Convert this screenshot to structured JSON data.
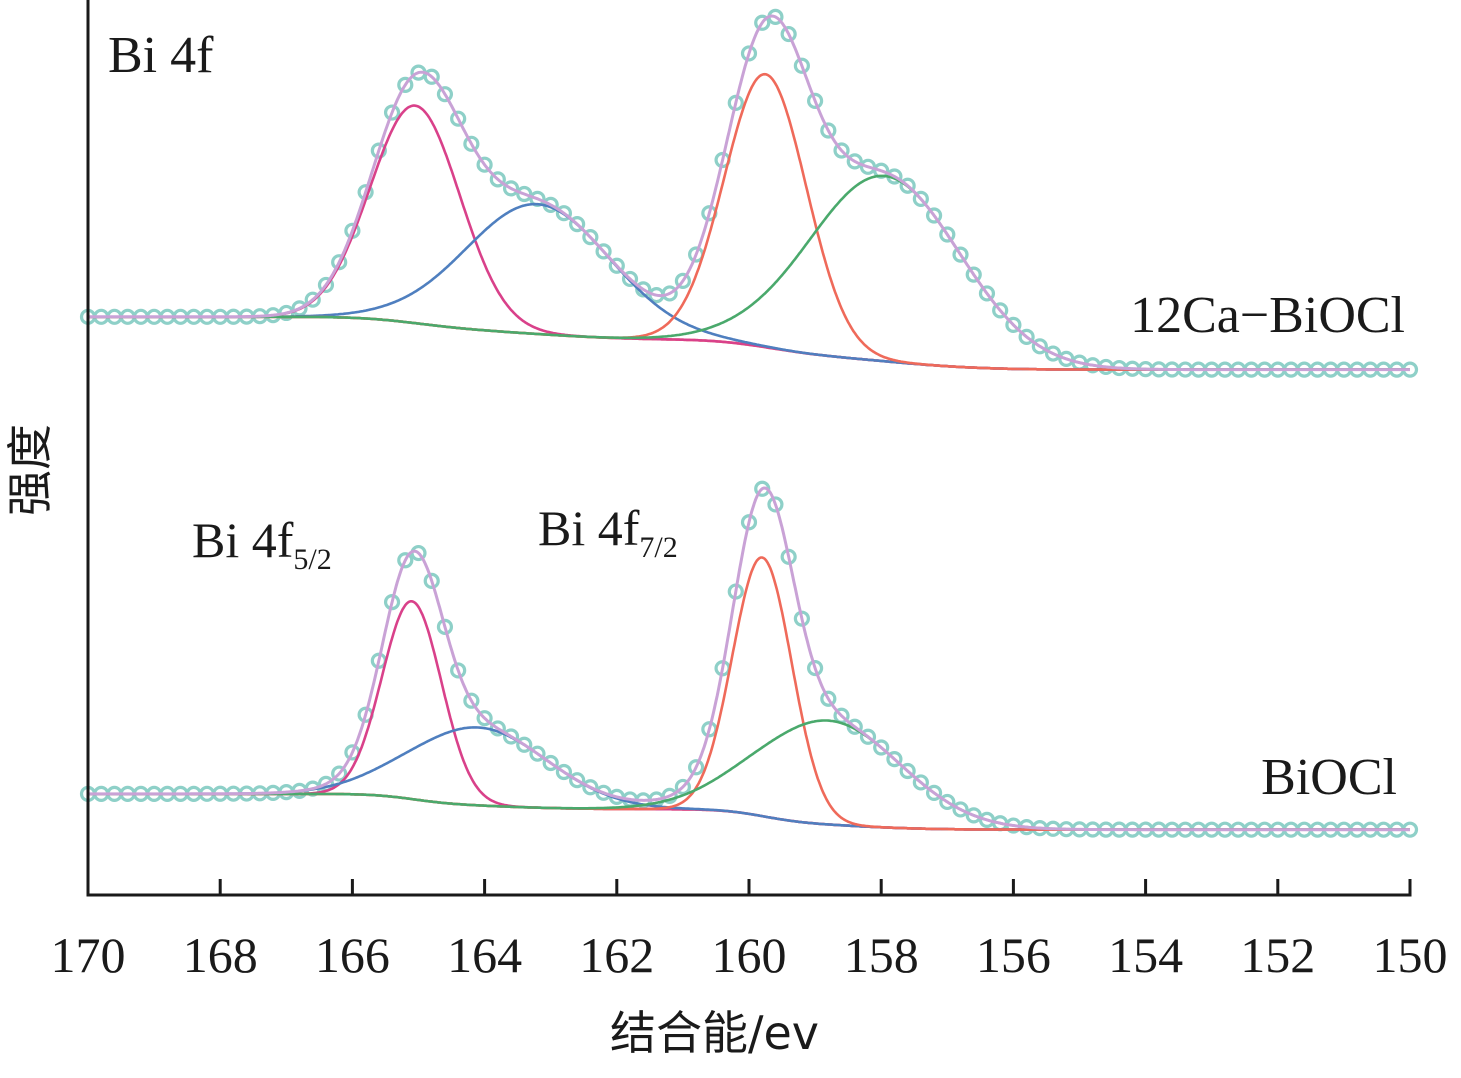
{
  "chart_data": {
    "type": "line",
    "title": "Bi 4f",
    "xlabel": "结合能/ev",
    "ylabel": "强度",
    "xlim": [
      170,
      150
    ],
    "ylim": [
      0,
      100
    ],
    "x_ticks": [
      170,
      168,
      166,
      164,
      162,
      160,
      158,
      156,
      154,
      152,
      150
    ],
    "grid": false,
    "colors": {
      "data_points": "#8ed0c8",
      "envelope": "#c9a2d6",
      "baseline": "#ef6a5a",
      "Bi4f5/2_main": "#d9418a",
      "Bi4f5/2_shoulder": "#4f7fbf",
      "Bi4f7/2_main": "#ef6a5a",
      "Bi4f7/2_shoulder": "#4aa96c"
    },
    "series": [
      {
        "name": "12Ca-BiOCl",
        "label": "12Ca−BiOCl",
        "baseline": {
          "high_side": 64.6,
          "low_side": 58.7
        },
        "components": [
          {
            "name": "Bi4f5/2_main",
            "center": 165.05,
            "height": 24.3,
            "sigma": 0.68
          },
          {
            "name": "Bi4f5/2_shoulder",
            "center": 163.2,
            "height": 14.5,
            "sigma": 1.1
          },
          {
            "name": "Bi4f7/2_main",
            "center": 159.75,
            "height": 30.5,
            "sigma": 0.62
          },
          {
            "name": "Bi4f7/2_shoulder",
            "center": 157.95,
            "height": 20.7,
            "sigma": 1.15
          }
        ]
      },
      {
        "name": "BiOCl",
        "label": "BiOCl",
        "baseline": {
          "high_side": 11.3,
          "low_side": 7.3
        },
        "components": [
          {
            "name": "Bi4f5/2_main",
            "center": 165.1,
            "height": 22.1,
            "sigma": 0.45
          },
          {
            "name": "Bi4f5/2_shoulder",
            "center": 164.1,
            "height": 8.7,
            "sigma": 1.05
          },
          {
            "name": "Bi4f7/2_main",
            "center": 159.8,
            "height": 28.9,
            "sigma": 0.45
          },
          {
            "name": "Bi4f7/2_shoulder",
            "center": 158.8,
            "height": 11.6,
            "sigma": 1.1
          }
        ]
      }
    ],
    "annotations": [
      {
        "text": "Bi 4f",
        "sub": "5/2"
      },
      {
        "text": "Bi 4f",
        "sub": "7/2"
      }
    ]
  }
}
